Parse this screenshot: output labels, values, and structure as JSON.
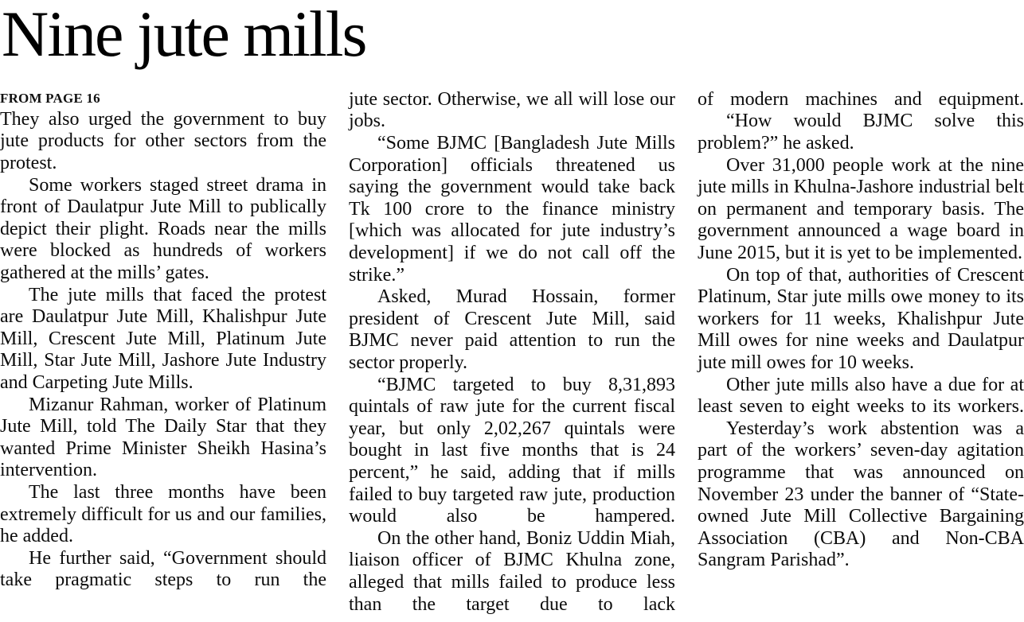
{
  "article": {
    "headline": "Nine jute mills",
    "kicker": "FROM PAGE 16",
    "columns": [
      {
        "paragraphs": [
          {
            "text": "They also urged the government to buy jute products for other sectors from the protest."
          },
          {
            "text": "Some workers staged street drama in front of Daulatpur Jute Mill to publically depict their plight. Roads near the mills were blocked as hundreds of workers gathered at the mills’ gates."
          },
          {
            "text": "The jute mills that faced the protest are Daulatpur Jute Mill, Khalishpur Jute Mill, Crescent Jute Mill, Platinum Jute Mill, Star Jute Mill, Jashore Jute Industry and Carpeting Jute Mills."
          },
          {
            "text": "Mizanur Rahman, worker of Platinum Jute Mill, told The Daily Star that they wanted Prime Minister Sheikh Hasina’s intervention."
          },
          {
            "text": "The last three months have been extremely difficult for us and our families, he added."
          },
          {
            "text": "He further said, “Government should take pragmatic steps to run the"
          }
        ]
      },
      {
        "paragraphs": [
          {
            "text": "jute sector. Otherwise, we all will lose our jobs."
          },
          {
            "text": "“Some BJMC [Bangladesh Jute Mills Corporation] officials threatened us saying the government would take back Tk 100 crore to the finance ministry [which was allocated for jute industry’s development] if we do not call off the strike.”"
          },
          {
            "text": "Asked, Murad Hossain, former president of Crescent Jute Mill, said BJMC never paid attention to run the sector properly."
          },
          {
            "text": "“BJMC targeted to buy 8,31,893 quintals of raw jute for the current fiscal year, but only 2,02,267 quintals were bought in last five months that is 24 percent,” he said, adding that if mills failed to buy targeted raw jute, production would also be hampered."
          },
          {
            "text": "On the other hand, Boniz Uddin Miah, liaison officer of BJMC Khulna zone, alleged that mills failed to produce less than the target due to lack"
          }
        ]
      },
      {
        "paragraphs": [
          {
            "text": "of modern machines and equipment."
          },
          {
            "text": "“How would BJMC solve this problem?” he asked."
          },
          {
            "text": "Over 31,000 people work at the nine jute mills in Khulna-Jashore industrial belt on permanent and temporary basis. The government announced a wage board in June 2015, but it is yet to be implemented."
          },
          {
            "text": "On top of that, authorities of Crescent Platinum, Star jute mills owe money to its workers for 11 weeks, Khalishpur Jute Mill owes for nine weeks and Daulatpur jute mill owes for 10 weeks."
          },
          {
            "text": "Other jute mills also have a due for at least seven to eight weeks to its workers."
          },
          {
            "text": "Yesterday’s work abstention was a part of the workers’ seven-day agitation programme that was announced on November 23 under the banner of “State-owned Jute Mill Collective Bargaining Association (CBA) and Non-CBA Sangram Parishad”."
          }
        ]
      }
    ]
  }
}
